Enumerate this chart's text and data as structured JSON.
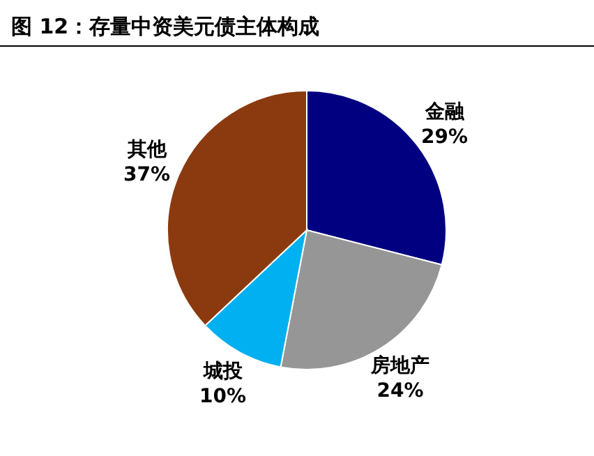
{
  "chart_data": {
    "type": "pie",
    "title": "图 12：存量中资美元债主体构成",
    "categories": [
      "金融",
      "房地产",
      "城投",
      "其他"
    ],
    "values": [
      29,
      24,
      10,
      37
    ],
    "colors": [
      "#000080",
      "#969696",
      "#00b0f0",
      "#8b3a0f"
    ],
    "value_labels": [
      "29%",
      "24%",
      "10%",
      "37%"
    ]
  }
}
